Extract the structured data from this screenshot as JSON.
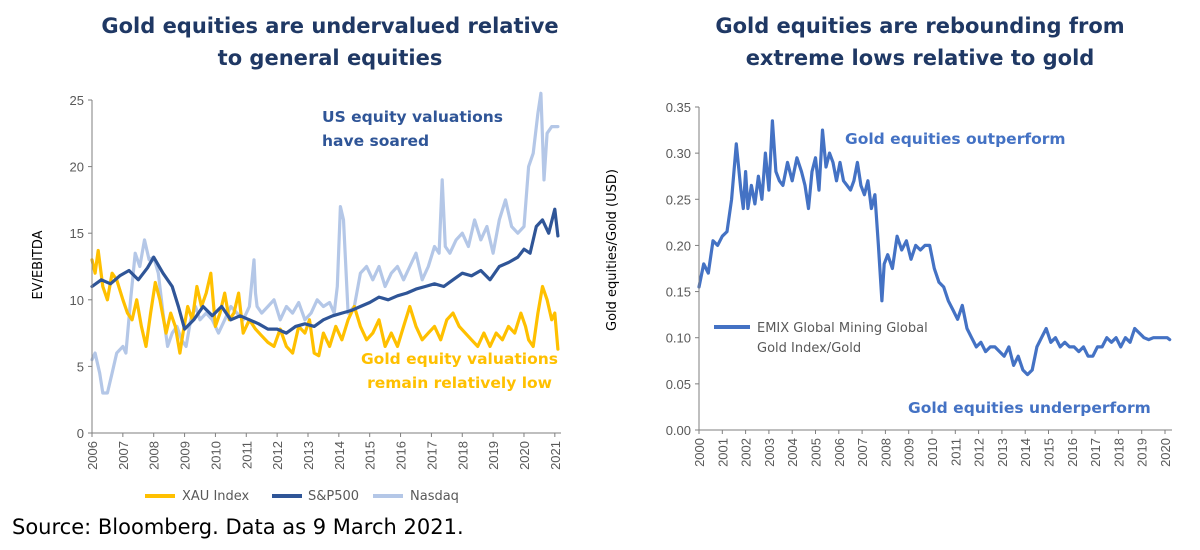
{
  "source_note": "Source: Bloomberg. Data as 9 March 2021.",
  "colors": {
    "xau": "#ffc000",
    "sp500": "#2f5597",
    "nasdaq": "#b4c7e7",
    "ratio": "#4472c4",
    "title": "#1f3864",
    "axis": "#7f7f7f"
  },
  "chart_data": [
    {
      "type": "line",
      "title_lines": [
        "Gold equities are undervalued relative",
        "to general equities"
      ],
      "xlabel": "",
      "ylabel": "EV/EBITDA",
      "xlim": [
        2006.0,
        2021.2
      ],
      "ylim": [
        0,
        25
      ],
      "yticks": [
        "0",
        "5",
        "10",
        "15",
        "20",
        "25"
      ],
      "xticks": [
        "2006",
        "2007",
        "2008",
        "2009",
        "2010",
        "2011",
        "2012",
        "2013",
        "2014",
        "2015",
        "2016",
        "2017",
        "2018",
        "2019",
        "2020",
        "2021"
      ],
      "grid": false,
      "legend_position": "bottom",
      "annotations": [
        {
          "lines": [
            "US equity valuations",
            "have soared"
          ],
          "color": "#2f5597"
        },
        {
          "lines": [
            "Gold equity valuations",
            "remain relatively low"
          ],
          "color": "#ffc000"
        }
      ],
      "series": [
        {
          "name": "XAU Index",
          "color": "#ffc000",
          "x": [
            2006.0,
            2006.1,
            2006.2,
            2006.35,
            2006.5,
            2006.65,
            2006.8,
            2007.0,
            2007.15,
            2007.3,
            2007.45,
            2007.6,
            2007.75,
            2007.9,
            2008.05,
            2008.2,
            2008.4,
            2008.55,
            2008.7,
            2008.85,
            2008.95,
            2009.1,
            2009.25,
            2009.4,
            2009.55,
            2009.7,
            2009.85,
            2010.0,
            2010.15,
            2010.3,
            2010.45,
            2010.6,
            2010.75,
            2010.9,
            2011.1,
            2011.3,
            2011.5,
            2011.7,
            2011.9,
            2012.1,
            2012.3,
            2012.5,
            2012.7,
            2012.9,
            2013.05,
            2013.2,
            2013.35,
            2013.5,
            2013.7,
            2013.9,
            2014.1,
            2014.3,
            2014.5,
            2014.7,
            2014.9,
            2015.1,
            2015.3,
            2015.5,
            2015.7,
            2015.9,
            2016.1,
            2016.3,
            2016.5,
            2016.7,
            2016.9,
            2017.1,
            2017.3,
            2017.5,
            2017.7,
            2017.9,
            2018.1,
            2018.3,
            2018.5,
            2018.7,
            2018.9,
            2019.1,
            2019.3,
            2019.5,
            2019.7,
            2019.9,
            2020.05,
            2020.15,
            2020.3,
            2020.45,
            2020.6,
            2020.75,
            2020.9,
            2021.0,
            2021.1
          ],
          "values": [
            13.0,
            12.0,
            13.7,
            11.0,
            10.0,
            12.0,
            11.5,
            10.0,
            9.0,
            8.5,
            10.0,
            8.0,
            6.5,
            9.0,
            11.3,
            10.0,
            7.5,
            9.0,
            8.0,
            6.0,
            7.5,
            9.5,
            8.5,
            11.0,
            9.5,
            10.5,
            12.0,
            8.0,
            9.0,
            10.5,
            8.5,
            9.0,
            10.5,
            7.5,
            8.5,
            7.8,
            7.3,
            6.8,
            6.5,
            7.8,
            6.5,
            6.0,
            8.0,
            7.5,
            8.5,
            6.0,
            5.8,
            7.5,
            6.5,
            8.0,
            7.0,
            8.5,
            9.5,
            8.0,
            7.0,
            7.5,
            8.5,
            6.5,
            7.5,
            6.5,
            8.0,
            9.5,
            8.0,
            7.0,
            7.5,
            8.0,
            7.0,
            8.5,
            9.0,
            8.0,
            7.5,
            7.0,
            6.5,
            7.5,
            6.5,
            7.5,
            7.0,
            8.0,
            7.5,
            9.0,
            8.0,
            7.0,
            6.5,
            9.0,
            11.0,
            10.0,
            8.5,
            9.0,
            6.3
          ]
        },
        {
          "name": "S&P500",
          "color": "#2f5597",
          "x": [
            2006.0,
            2006.3,
            2006.6,
            2006.9,
            2007.2,
            2007.5,
            2007.8,
            2008.0,
            2008.3,
            2008.6,
            2008.8,
            2009.0,
            2009.3,
            2009.6,
            2009.9,
            2010.2,
            2010.5,
            2010.8,
            2011.1,
            2011.4,
            2011.7,
            2012.0,
            2012.3,
            2012.6,
            2012.9,
            2013.2,
            2013.5,
            2013.8,
            2014.1,
            2014.4,
            2014.7,
            2015.0,
            2015.3,
            2015.6,
            2015.9,
            2016.2,
            2016.5,
            2016.8,
            2017.1,
            2017.4,
            2017.7,
            2018.0,
            2018.3,
            2018.6,
            2018.9,
            2019.2,
            2019.5,
            2019.8,
            2020.0,
            2020.2,
            2020.4,
            2020.6,
            2020.8,
            2021.0,
            2021.1
          ],
          "values": [
            11.0,
            11.5,
            11.2,
            11.8,
            12.2,
            11.5,
            12.4,
            13.2,
            12.0,
            11.0,
            9.5,
            7.8,
            8.5,
            9.5,
            8.8,
            9.5,
            8.5,
            8.8,
            8.5,
            8.2,
            7.8,
            7.8,
            7.5,
            8.0,
            8.2,
            8.0,
            8.5,
            8.8,
            9.0,
            9.2,
            9.5,
            9.8,
            10.2,
            10.0,
            10.3,
            10.5,
            10.8,
            11.0,
            11.2,
            11.0,
            11.5,
            12.0,
            11.8,
            12.2,
            11.5,
            12.5,
            12.8,
            13.2,
            13.8,
            13.5,
            15.5,
            16.0,
            15.0,
            16.8,
            14.8
          ]
        },
        {
          "name": "Nasdaq",
          "color": "#b4c7e7",
          "x": [
            2006.0,
            2006.1,
            2006.25,
            2006.35,
            2006.5,
            2006.65,
            2006.8,
            2007.0,
            2007.1,
            2007.25,
            2007.4,
            2007.55,
            2007.7,
            2007.85,
            2008.0,
            2008.15,
            2008.3,
            2008.45,
            2008.6,
            2008.75,
            2008.9,
            2009.05,
            2009.2,
            2009.35,
            2009.5,
            2009.7,
            2009.9,
            2010.1,
            2010.3,
            2010.5,
            2010.7,
            2010.9,
            2011.1,
            2011.25,
            2011.3,
            2011.35,
            2011.5,
            2011.7,
            2011.9,
            2012.1,
            2012.3,
            2012.5,
            2012.7,
            2012.9,
            2013.1,
            2013.3,
            2013.5,
            2013.7,
            2013.85,
            2013.95,
            2014.05,
            2014.15,
            2014.3,
            2014.5,
            2014.7,
            2014.9,
            2015.1,
            2015.3,
            2015.5,
            2015.7,
            2015.9,
            2016.1,
            2016.3,
            2016.5,
            2016.7,
            2016.9,
            2017.1,
            2017.25,
            2017.35,
            2017.45,
            2017.6,
            2017.8,
            2018.0,
            2018.2,
            2018.4,
            2018.6,
            2018.8,
            2019.0,
            2019.2,
            2019.4,
            2019.6,
            2019.8,
            2020.0,
            2020.15,
            2020.3,
            2020.45,
            2020.55,
            2020.65,
            2020.75,
            2020.9,
            2021.0,
            2021.1
          ],
          "values": [
            5.5,
            6.0,
            4.5,
            3.0,
            3.0,
            4.5,
            6.0,
            6.5,
            6.0,
            10.0,
            13.5,
            12.5,
            14.5,
            13.0,
            13.2,
            12.0,
            9.0,
            6.5,
            7.5,
            8.0,
            7.0,
            6.5,
            8.5,
            9.5,
            8.5,
            9.0,
            8.5,
            7.5,
            8.5,
            9.5,
            9.0,
            8.5,
            9.5,
            13.0,
            10.5,
            9.5,
            9.0,
            9.5,
            10.0,
            8.5,
            9.5,
            9.0,
            9.8,
            8.5,
            9.0,
            10.0,
            9.5,
            9.8,
            9.0,
            11.0,
            17.0,
            16.0,
            9.0,
            9.5,
            12.0,
            12.5,
            11.5,
            12.5,
            11.0,
            12.0,
            12.5,
            11.5,
            12.5,
            13.5,
            11.5,
            12.5,
            14.0,
            13.5,
            19.0,
            14.0,
            13.5,
            14.5,
            15.0,
            14.0,
            16.0,
            14.5,
            15.5,
            13.5,
            16.0,
            17.5,
            15.5,
            15.0,
            15.5,
            20.0,
            21.0,
            24.0,
            25.5,
            19.0,
            22.5,
            23.0,
            23.0,
            23.0
          ]
        }
      ]
    },
    {
      "type": "line",
      "title_lines": [
        "Gold equities are rebounding from",
        "extreme lows relative to gold"
      ],
      "xlabel": "",
      "ylabel": "Gold equities/Gold (USD)",
      "xlim": [
        2000.0,
        2020.3
      ],
      "ylim": [
        0,
        0.35
      ],
      "yticks": [
        "0.00",
        "0.05",
        "0.10",
        "0.15",
        "0.20",
        "0.25",
        "0.30",
        "0.35"
      ],
      "xticks": [
        "2000",
        "2001",
        "2002",
        "2003",
        "2004",
        "2005",
        "2006",
        "2007",
        "2008",
        "2009",
        "2010",
        "2011",
        "2012",
        "2013",
        "2014",
        "2015",
        "2016",
        "2017",
        "2018",
        "2019",
        "2020"
      ],
      "grid": false,
      "legend_position": "middle-left",
      "annotations": [
        {
          "lines": [
            "Gold equities outperform"
          ],
          "color": "#4472c4"
        },
        {
          "lines": [
            "Gold equities underperform"
          ],
          "color": "#4472c4"
        }
      ],
      "series": [
        {
          "name": "EMIX Global Mining Global Gold Index/Gold",
          "color": "#4472c4",
          "x": [
            2000.0,
            2000.2,
            2000.4,
            2000.6,
            2000.8,
            2001.0,
            2001.2,
            2001.4,
            2001.6,
            2001.8,
            2001.9,
            2002.0,
            2002.1,
            2002.25,
            2002.4,
            2002.55,
            2002.7,
            2002.85,
            2003.0,
            2003.15,
            2003.3,
            2003.45,
            2003.6,
            2003.8,
            2004.0,
            2004.2,
            2004.4,
            2004.55,
            2004.7,
            2004.85,
            2005.0,
            2005.15,
            2005.3,
            2005.45,
            2005.6,
            2005.75,
            2005.9,
            2006.05,
            2006.2,
            2006.35,
            2006.5,
            2006.65,
            2006.8,
            2006.95,
            2007.1,
            2007.25,
            2007.4,
            2007.55,
            2007.7,
            2007.85,
            2007.95,
            2008.1,
            2008.3,
            2008.5,
            2008.7,
            2008.9,
            2009.1,
            2009.3,
            2009.5,
            2009.7,
            2009.9,
            2010.1,
            2010.3,
            2010.5,
            2010.7,
            2010.9,
            2011.1,
            2011.3,
            2011.5,
            2011.7,
            2011.9,
            2012.1,
            2012.3,
            2012.5,
            2012.7,
            2012.9,
            2013.1,
            2013.3,
            2013.5,
            2013.7,
            2013.9,
            2014.1,
            2014.3,
            2014.5,
            2014.7,
            2014.9,
            2015.1,
            2015.3,
            2015.5,
            2015.7,
            2015.9,
            2016.1,
            2016.3,
            2016.5,
            2016.7,
            2016.9,
            2017.1,
            2017.3,
            2017.5,
            2017.7,
            2017.9,
            2018.1,
            2018.3,
            2018.5,
            2018.7,
            2018.9,
            2019.1,
            2019.3,
            2019.5,
            2019.7,
            2019.9,
            2020.1,
            2020.2
          ],
          "values": [
            0.155,
            0.18,
            0.17,
            0.205,
            0.2,
            0.21,
            0.215,
            0.25,
            0.31,
            0.26,
            0.24,
            0.28,
            0.24,
            0.265,
            0.245,
            0.275,
            0.25,
            0.3,
            0.26,
            0.335,
            0.28,
            0.27,
            0.265,
            0.29,
            0.27,
            0.295,
            0.28,
            0.265,
            0.24,
            0.28,
            0.295,
            0.26,
            0.325,
            0.285,
            0.3,
            0.29,
            0.27,
            0.29,
            0.27,
            0.265,
            0.26,
            0.27,
            0.29,
            0.265,
            0.255,
            0.27,
            0.24,
            0.255,
            0.2,
            0.14,
            0.18,
            0.19,
            0.175,
            0.21,
            0.195,
            0.205,
            0.185,
            0.2,
            0.195,
            0.2,
            0.2,
            0.175,
            0.16,
            0.155,
            0.14,
            0.13,
            0.12,
            0.135,
            0.11,
            0.1,
            0.09,
            0.095,
            0.085,
            0.09,
            0.09,
            0.085,
            0.08,
            0.09,
            0.07,
            0.08,
            0.065,
            0.06,
            0.065,
            0.09,
            0.1,
            0.11,
            0.095,
            0.1,
            0.09,
            0.095,
            0.09,
            0.09,
            0.085,
            0.09,
            0.08,
            0.08,
            0.09,
            0.09,
            0.1,
            0.095,
            0.1,
            0.09,
            0.1,
            0.095,
            0.11,
            0.105,
            0.1,
            0.098,
            0.1,
            0.1,
            0.1,
            0.1,
            0.098
          ]
        }
      ]
    }
  ]
}
